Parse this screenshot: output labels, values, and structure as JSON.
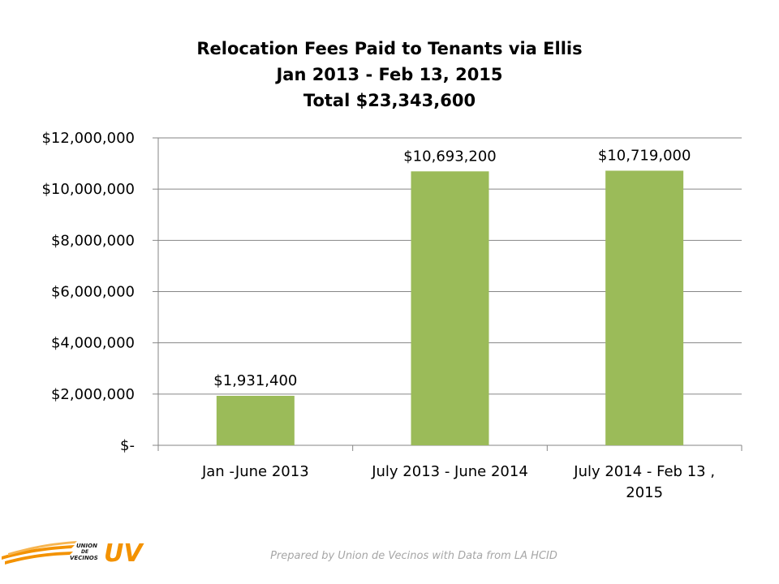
{
  "chart_data": {
    "type": "bar",
    "title_lines": [
      "Relocation Fees Paid to Tenants via Ellis",
      "Jan 2013 - Feb 13, 2015",
      "Total $23,343,600"
    ],
    "categories": [
      [
        "Jan -June 2013"
      ],
      [
        "July 2013 - June 2014"
      ],
      [
        "July 2014 - Feb 13 ,",
        "2015"
      ]
    ],
    "values": [
      1931400,
      10693200,
      10719000
    ],
    "data_labels": [
      "$1,931,400",
      "$10,693,200",
      "$10,719,000"
    ],
    "ylim": [
      0,
      12000000
    ],
    "y_ticks": [
      0,
      2000000,
      4000000,
      6000000,
      8000000,
      10000000,
      12000000
    ],
    "y_tick_labels": [
      "$-",
      "$2,000,000",
      "$4,000,000",
      "$6,000,000",
      "$8,000,000",
      "$10,000,000",
      "$12,000,000"
    ],
    "grid": true,
    "bar_color": "#9bbb59",
    "xlabel": "",
    "ylabel": ""
  },
  "footer": {
    "credit": "Prepared by Union de Vecinos with Data from LA HCID"
  },
  "logo": {
    "text_lines": [
      "UNION",
      "DE",
      "VECINOS"
    ],
    "mark": "UV",
    "color": "#f39200"
  }
}
